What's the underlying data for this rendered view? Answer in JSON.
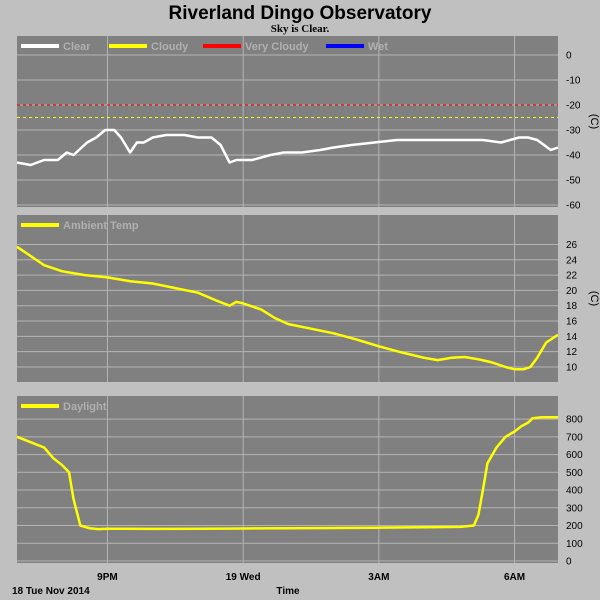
{
  "title": "Riverland Dingo Observatory",
  "subtitle": "Sky is Clear.",
  "colors": {
    "page_bg": "#c0c0c0",
    "panel_bg": "#808080",
    "grid": "#b4b4b4",
    "clear": "#ffffff",
    "cloudy": "#ffff00",
    "very_cloudy": "#ff0000",
    "wet": "#0000ff",
    "ambient": "#ffff00",
    "daylight": "#ffff00"
  },
  "x_axis": {
    "label": "Time",
    "date_label": "18 Tue Nov 2014",
    "ticks": [
      "9PM",
      "19 Wed",
      "3AM",
      "6AM"
    ],
    "tick_hours": [
      21,
      24,
      27,
      30
    ],
    "range_hours": [
      19.0,
      30.96
    ]
  },
  "chart_data": [
    {
      "type": "line",
      "name": "sky-temperature",
      "legend": [
        {
          "label": "Clear",
          "color": "#ffffff"
        },
        {
          "label": "Cloudy",
          "color": "#ffff00"
        },
        {
          "label": "Very Cloudy",
          "color": "#ff0000"
        },
        {
          "label": "Wet",
          "color": "#0000ff"
        }
      ],
      "unit": "(C)",
      "ylim": [
        -60,
        0
      ],
      "yticks": [
        0,
        -10,
        -20,
        -30,
        -40,
        -50,
        -60
      ],
      "thresholds": [
        {
          "value": -20,
          "color": "#ff0000",
          "style": "dashed"
        },
        {
          "value": -25,
          "color": "#ffff00",
          "style": "dashed"
        }
      ],
      "series": [
        {
          "name": "Clear",
          "color": "#ffffff",
          "x": [
            19.0,
            19.3,
            19.6,
            19.9,
            20.1,
            20.25,
            20.55,
            20.75,
            20.95,
            21.15,
            21.3,
            21.5,
            21.65,
            21.8,
            22.0,
            22.3,
            22.7,
            23.0,
            23.3,
            23.5,
            23.7,
            23.85,
            24.2,
            24.6,
            24.9,
            25.3,
            25.7,
            26.0,
            26.4,
            26.9,
            27.4,
            27.9,
            28.4,
            28.9,
            29.3,
            29.7,
            30.1,
            30.3,
            30.5,
            30.65,
            30.8,
            30.96
          ],
          "y": [
            -43,
            -44,
            -42,
            -42,
            -39,
            -40,
            -35,
            -33,
            -30,
            -30,
            -33,
            -39,
            -35,
            -35,
            -33,
            -32,
            -32,
            -33,
            -33,
            -36,
            -43,
            -42,
            -42,
            -40,
            -39,
            -39,
            -38,
            -37,
            -36,
            -35,
            -34,
            -34,
            -34,
            -34,
            -34,
            -35,
            -33,
            -33,
            -34,
            -36,
            -38,
            -37
          ]
        }
      ]
    },
    {
      "type": "line",
      "name": "ambient-temperature",
      "legend": [
        {
          "label": "Ambient Temp",
          "color": "#ffff00"
        }
      ],
      "unit": "(C)",
      "ylim": [
        8.3,
        27.5
      ],
      "yticks": [
        26,
        24,
        22,
        20,
        18,
        16,
        14,
        12,
        10
      ],
      "series": [
        {
          "name": "Ambient Temp",
          "color": "#ffff00",
          "x": [
            19.0,
            19.3,
            19.6,
            20.0,
            20.5,
            21.0,
            21.5,
            22.0,
            22.5,
            23.0,
            23.4,
            23.7,
            23.85,
            24.0,
            24.4,
            24.7,
            25.0,
            25.5,
            26.0,
            26.5,
            27.0,
            27.5,
            28.0,
            28.3,
            28.6,
            28.9,
            29.2,
            29.5,
            29.8,
            30.0,
            30.2,
            30.35,
            30.5,
            30.7,
            30.96
          ],
          "y": [
            25.7,
            24.5,
            23.3,
            22.5,
            22.0,
            21.7,
            21.2,
            20.9,
            20.3,
            19.7,
            18.7,
            18.0,
            18.5,
            18.3,
            17.5,
            16.4,
            15.6,
            15.0,
            14.4,
            13.6,
            12.7,
            11.9,
            11.2,
            10.9,
            11.2,
            11.3,
            11.0,
            10.6,
            10.0,
            9.7,
            9.7,
            10.0,
            11.2,
            13.2,
            14.2
          ]
        }
      ]
    },
    {
      "type": "line",
      "name": "daylight",
      "legend": [
        {
          "label": "Daylight",
          "color": "#ffff00"
        }
      ],
      "unit": "",
      "ylim": [
        0,
        840
      ],
      "yticks": [
        800,
        700,
        600,
        500,
        400,
        300,
        200,
        100,
        0
      ],
      "series": [
        {
          "name": "Daylight",
          "color": "#ffff00",
          "x": [
            19.0,
            19.3,
            19.6,
            19.8,
            20.0,
            20.15,
            20.25,
            20.4,
            20.6,
            20.8,
            21.0,
            22.0,
            23.0,
            24.0,
            25.0,
            26.0,
            27.0,
            28.0,
            28.8,
            29.1,
            29.2,
            29.3,
            29.4,
            29.6,
            29.8,
            30.0,
            30.15,
            30.3,
            30.4,
            30.6,
            30.96
          ],
          "y": [
            700,
            670,
            640,
            580,
            540,
            500,
            350,
            200,
            185,
            180,
            182,
            181,
            182,
            183,
            185,
            186,
            188,
            190,
            192,
            200,
            260,
            400,
            550,
            640,
            700,
            730,
            760,
            780,
            805,
            810,
            810
          ]
        }
      ]
    }
  ]
}
